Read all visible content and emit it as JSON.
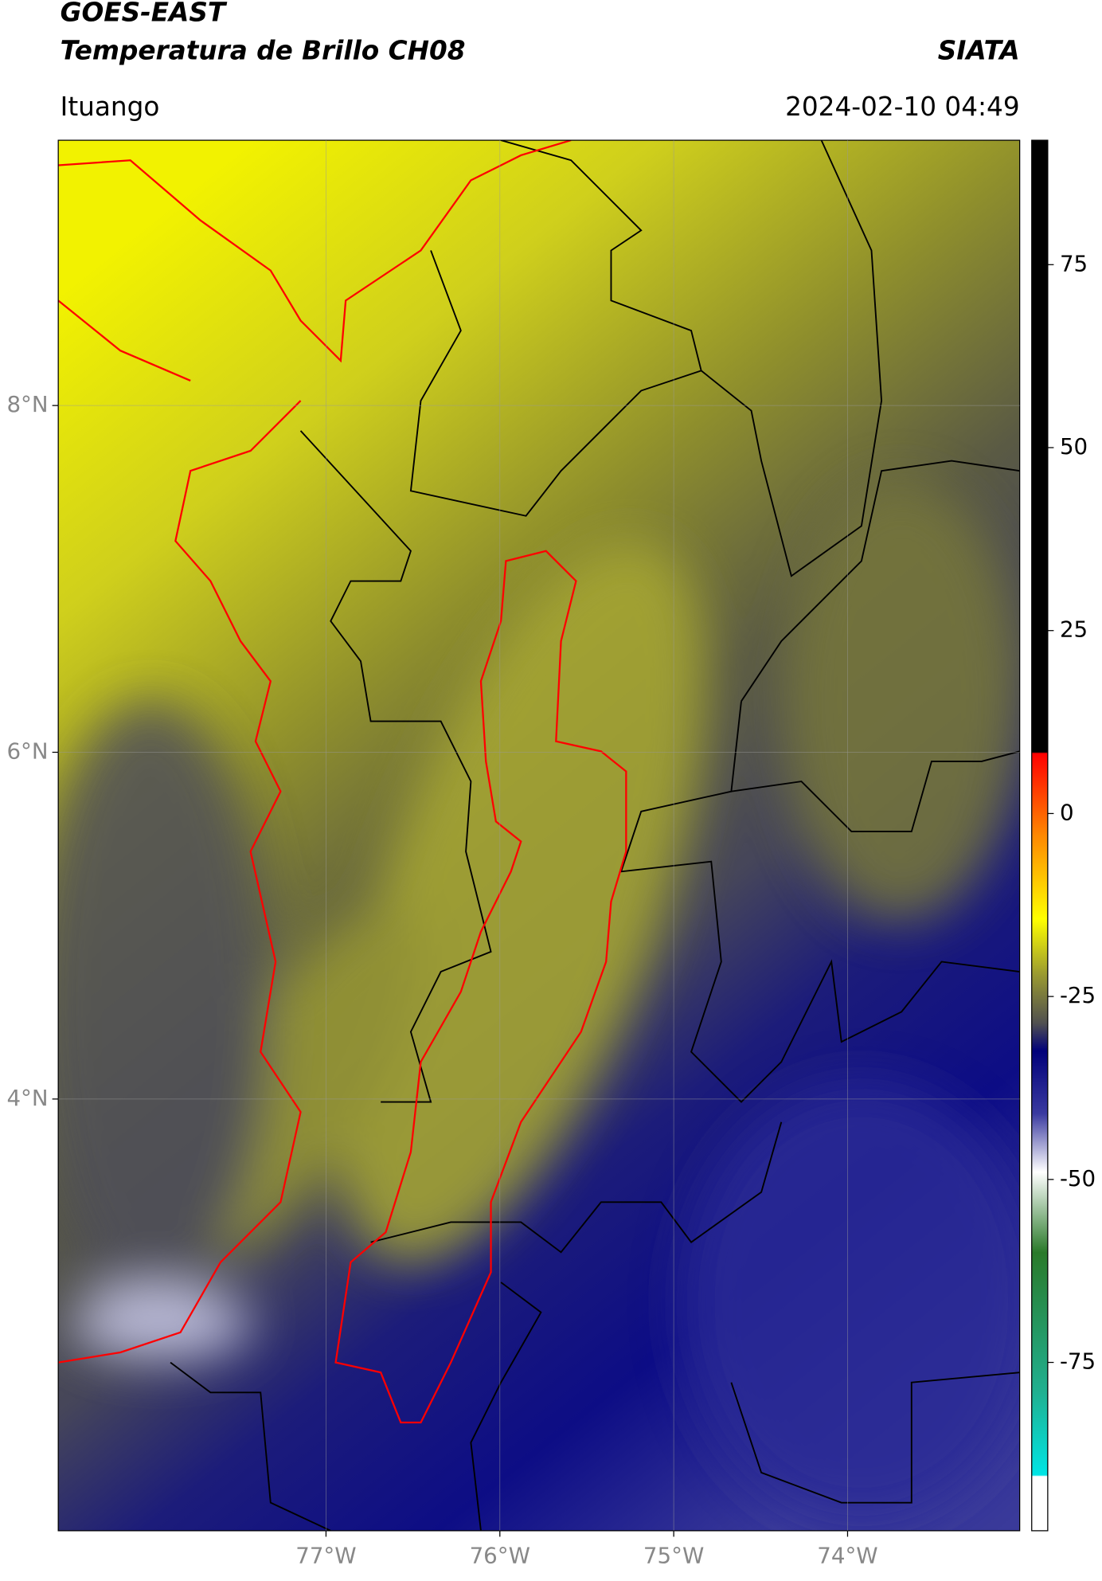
{
  "header": {
    "title": "GOES-EAST",
    "subtitle": "Temperatura de Brillo CH08",
    "source": "SIATA",
    "region": "Ituango",
    "datetime": "2024-02-10 04:49"
  },
  "map": {
    "xlim": [
      -78.54,
      -73.01
    ],
    "ylim": [
      1.51,
      9.53
    ],
    "xticks": [
      {
        "value": -77,
        "label": "77°W"
      },
      {
        "value": -76,
        "label": "76°W"
      },
      {
        "value": -75,
        "label": "75°W"
      },
      {
        "value": -74,
        "label": "74°W"
      }
    ],
    "yticks": [
      {
        "value": 4,
        "label": "4°N"
      },
      {
        "value": 6,
        "label": "6°N"
      },
      {
        "value": 8,
        "label": "8°N"
      }
    ],
    "grid": true
  },
  "colorbar": {
    "lim": [
      -98,
      92
    ],
    "ticks": [
      75,
      50,
      25,
      0,
      -25,
      -50,
      -75
    ]
  }
}
